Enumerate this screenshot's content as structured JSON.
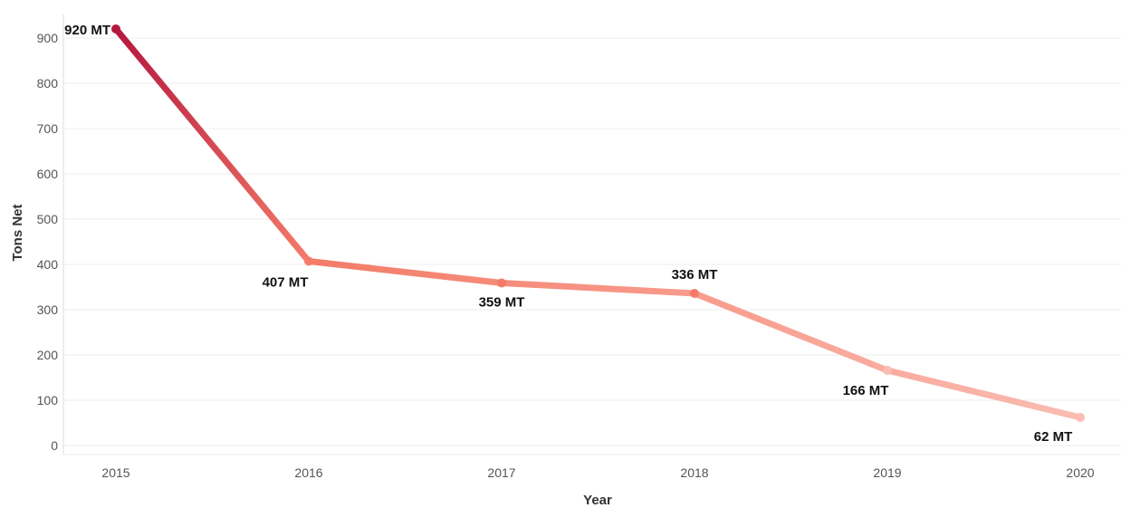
{
  "chart_data": {
    "type": "line",
    "title": "",
    "xlabel": "Year",
    "ylabel": "Tons Net",
    "categories": [
      "2015",
      "2016",
      "2017",
      "2018",
      "2019",
      "2020"
    ],
    "values": [
      920,
      407,
      359,
      336,
      166,
      62
    ],
    "data_labels": [
      "920 MT",
      "407 MT",
      "359 MT",
      "336 MT",
      "166 MT",
      "62 MT"
    ],
    "yticks": [
      "0",
      "100",
      "200",
      "300",
      "400",
      "500",
      "600",
      "700",
      "800",
      "900"
    ],
    "ylim": [
      0,
      900
    ],
    "grid": true,
    "legend": "none",
    "colors": {
      "gradient_start": "#b5183f",
      "gradient_mid": "#f47b68",
      "gradient_end": "#fbbcb1"
    }
  }
}
